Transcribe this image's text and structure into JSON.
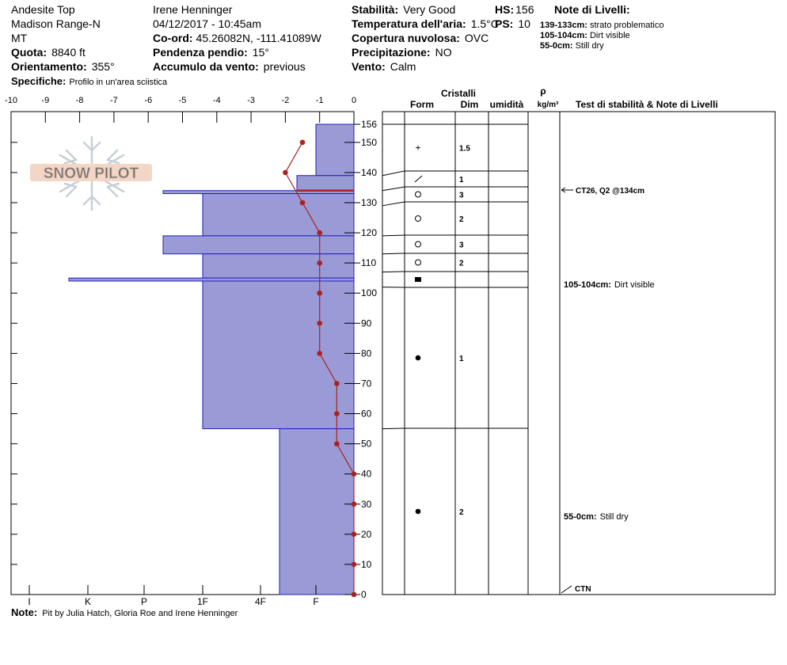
{
  "header": {
    "col1": [
      "Andesite Top",
      "Madison Range-N",
      "MT"
    ],
    "observer": "Irene Henninger",
    "datetime": "04/12/2017 - 10:45am",
    "quota_label": "Quota:",
    "quota_value": "8840 ft",
    "orient_label": "Orientamento:",
    "orient_value": "355°",
    "specifiche_label": "Specifiche:",
    "specifiche_value": "Profilo in un'area sciistica",
    "coord_label": "Co-ord:",
    "coord_value": "45.26082N, -111.41089W",
    "pendenza_label": "Pendenza pendio:",
    "pendenza_value": "15°",
    "accumulo_label": "Accumulo da vento:",
    "accumulo_value": "previous",
    "stabilita_label": "Stabilità:",
    "stabilita_value": "Very Good",
    "temp_label": "Temperatura dell'aria:",
    "temp_value": "1.5°C",
    "copertura_label": "Copertura nuvolosa:",
    "copertura_value": "OVC",
    "precip_label": "Precipitazione:",
    "precip_value": "NO",
    "vento_label": "Vento:",
    "vento_value": "Calm",
    "hs_label": "HS:",
    "hs_value": "156",
    "ps_label": "PS:",
    "ps_value": "10",
    "notes_title": "Note di Livelli:",
    "notes": [
      {
        "range": "139-133cm:",
        "text": "strato problematico"
      },
      {
        "range": "105-104cm:",
        "text": "Dirt visible"
      },
      {
        "range": "55-0cm:",
        "text": "Still dry"
      }
    ]
  },
  "watermark": "SNOW PILOT",
  "footer": {
    "label": "Note:",
    "text": "Pit by Julia Hatch, Gloria Roe and Irene Henninger"
  },
  "colors": {
    "hardness_fill": "#9a9ad6",
    "hardness_stroke": "#2222bb",
    "temp_line": "#aa2222",
    "problem_layer": "#aa2222"
  },
  "chart_data": {
    "type": "snow-profile",
    "temp_axis": {
      "ticks": [
        -10,
        -9,
        -8,
        -7,
        -6,
        -5,
        -4,
        -3,
        -2,
        -1,
        0
      ],
      "range": [
        -10,
        0
      ]
    },
    "hardness_axis": {
      "labels": [
        "I",
        "K",
        "P",
        "1F",
        "4F",
        "F"
      ]
    },
    "depth_axis": {
      "ticks": [
        0,
        10,
        20,
        30,
        40,
        50,
        60,
        70,
        80,
        90,
        100,
        110,
        120,
        130,
        140,
        150
      ],
      "top_label": "156",
      "range": [
        0,
        156
      ]
    },
    "hardness_profile": [
      {
        "top": 156,
        "bottom": 139,
        "hardness": "F"
      },
      {
        "top": 139,
        "bottom": 134,
        "hardness": "F+"
      },
      {
        "top": 134,
        "bottom": 133,
        "hardness": "P-"
      },
      {
        "top": 133,
        "bottom": 119,
        "hardness": "1F"
      },
      {
        "top": 119,
        "bottom": 113,
        "hardness": "P-"
      },
      {
        "top": 113,
        "bottom": 105,
        "hardness": "1F"
      },
      {
        "top": 105,
        "bottom": 104,
        "hardness": "K+"
      },
      {
        "top": 104,
        "bottom": 55,
        "hardness": "1F"
      },
      {
        "top": 55,
        "bottom": 0,
        "hardness": "4F-"
      }
    ],
    "problem_layer_depth": 134,
    "temperature_profile": [
      {
        "depth": 150,
        "temp": -1.5
      },
      {
        "depth": 140,
        "temp": -2.0
      },
      {
        "depth": 130,
        "temp": -1.5
      },
      {
        "depth": 120,
        "temp": -1.0
      },
      {
        "depth": 110,
        "temp": -1.0
      },
      {
        "depth": 100,
        "temp": -1.0
      },
      {
        "depth": 90,
        "temp": -1.0
      },
      {
        "depth": 80,
        "temp": -1.0
      },
      {
        "depth": 70,
        "temp": -0.5
      },
      {
        "depth": 60,
        "temp": -0.5
      },
      {
        "depth": 50,
        "temp": -0.5
      },
      {
        "depth": 40,
        "temp": 0.0
      },
      {
        "depth": 30,
        "temp": 0.0
      },
      {
        "depth": 20,
        "temp": 0.0
      },
      {
        "depth": 10,
        "temp": 0.0
      },
      {
        "depth": 0,
        "temp": 0.0
      }
    ],
    "layers": [
      {
        "top": 156,
        "bottom": 139,
        "form": "+",
        "size": "1.5"
      },
      {
        "top": 139,
        "bottom": 134,
        "form": "/",
        "size": "1"
      },
      {
        "top": 134,
        "bottom": 129,
        "form": "○",
        "size": "3"
      },
      {
        "top": 129,
        "bottom": 119,
        "form": "○",
        "size": "2"
      },
      {
        "top": 119,
        "bottom": 113,
        "form": "○",
        "size": "3"
      },
      {
        "top": 113,
        "bottom": 107,
        "form": "○",
        "size": "2"
      },
      {
        "top": 107,
        "bottom": 102,
        "form": "■",
        "size": ""
      },
      {
        "top": 102,
        "bottom": 55,
        "form": "●",
        "size": "1"
      },
      {
        "top": 55,
        "bottom": 0,
        "form": "●",
        "size": "2"
      }
    ],
    "layer_table_headers": {
      "cristalli": "Cristalli",
      "form": "Form",
      "dim": "Dim",
      "umidita": "umidità",
      "rho": "ρ",
      "density_unit": "kg/m³",
      "notes": "Test di stabilità & Note di Livelli"
    },
    "stability_notes": [
      {
        "depth": 134,
        "text": "CT26, Q2 @134cm",
        "arrow": true
      },
      {
        "depth": 104.5,
        "text": "105-104cm: Dirt visible",
        "arrow": false
      },
      {
        "depth": 27,
        "text": "55-0cm: Still dry",
        "arrow": false
      },
      {
        "depth": 0,
        "text": "CTN",
        "arrow": true
      }
    ]
  }
}
